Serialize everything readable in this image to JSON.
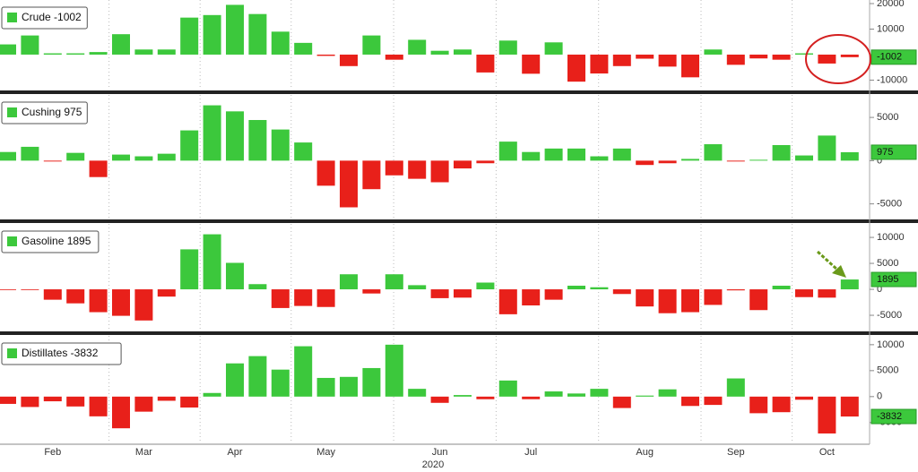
{
  "chart_data": [
    {
      "type": "bar",
      "legend": "Crude -1002",
      "positive_color": "#3cc83c",
      "negative_color": "#e8201a",
      "values": [
        4000,
        7500,
        500,
        500,
        1000,
        8000,
        2000,
        2000,
        14500,
        15500,
        19500,
        15900,
        9000,
        4600,
        -500,
        -4500,
        7500,
        -2000,
        5800,
        1500,
        2000,
        -7000,
        5500,
        -7500,
        4800,
        -10600,
        -7400,
        -4500,
        -1600,
        -4700,
        -8900,
        2000,
        -4000,
        -1500,
        -2000,
        500,
        -3500,
        -1002
      ],
      "ylim": [
        -13700,
        21400
      ],
      "yticks": [
        -10000,
        10000,
        20000
      ]
    },
    {
      "type": "bar",
      "legend": "Cushing 975",
      "positive_color": "#3cc83c",
      "negative_color": "#e8201a",
      "values": [
        1000,
        1600,
        -100,
        900,
        -1900,
        700,
        500,
        800,
        3500,
        6400,
        5700,
        4700,
        3600,
        2100,
        -2900,
        -5400,
        -3300,
        -1700,
        -2100,
        -2500,
        -900,
        -300,
        2200,
        1000,
        1400,
        1400,
        500,
        1400,
        -500,
        -300,
        200,
        1900,
        -100,
        100,
        1800,
        600,
        2900,
        975
      ],
      "ylim": [
        -6800,
        7600
      ],
      "yticks": [
        -5000,
        0,
        5000
      ]
    },
    {
      "type": "bar",
      "legend": "Gasoline 1895",
      "positive_color": "#3cc83c",
      "negative_color": "#e8201a",
      "values": [
        -100,
        -100,
        -2000,
        -2700,
        -4400,
        -5100,
        -6000,
        -1400,
        7700,
        10600,
        5100,
        1000,
        -3600,
        -3200,
        -3400,
        2900,
        -800,
        2900,
        800,
        -1700,
        -1600,
        1300,
        -4800,
        -3100,
        -2000,
        700,
        400,
        -900,
        -3300,
        -4600,
        -4400,
        -3000,
        -200,
        -4000,
        700,
        -1500,
        -1600,
        1895
      ],
      "ylim": [
        -8100,
        12600
      ],
      "yticks": [
        -5000,
        0,
        5000,
        10000
      ]
    },
    {
      "type": "bar",
      "legend": "Distillates -3832",
      "positive_color": "#3cc83c",
      "negative_color": "#e8201a",
      "values": [
        -1400,
        -2000,
        -900,
        -1900,
        -3800,
        -6100,
        -2900,
        -800,
        -2100,
        700,
        6400,
        7800,
        5200,
        9700,
        3600,
        3800,
        5500,
        10000,
        1500,
        -1200,
        300,
        -500,
        3100,
        -500,
        1000,
        600,
        1500,
        -2200,
        200,
        1400,
        -1800,
        -1600,
        3500,
        -3200,
        -3000,
        -600,
        -7100,
        -3832
      ],
      "ylim": [
        -9000,
        11700
      ],
      "yticks": [
        -5000,
        0,
        5000,
        10000
      ],
      "categories": [
        null,
        null,
        "Feb",
        null,
        null,
        null,
        "Mar",
        null,
        null,
        null,
        "Apr",
        null,
        null,
        null,
        "May",
        null,
        null,
        null,
        null,
        "Jun",
        null,
        null,
        null,
        "Jul",
        null,
        null,
        null,
        null,
        "Aug",
        null,
        null,
        null,
        "Sep",
        null,
        null,
        null,
        "Oct",
        null
      ],
      "xlabel": "2020"
    }
  ]
}
